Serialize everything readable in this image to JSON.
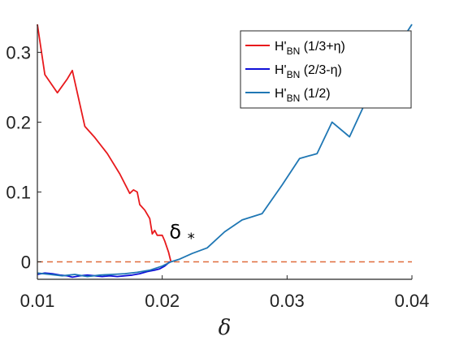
{
  "chart_data": {
    "type": "line",
    "xlabel": "δ",
    "ylabel": "",
    "title": "",
    "xlim": [
      0.01,
      0.04
    ],
    "ylim": [
      -0.025,
      0.34
    ],
    "x_ticks": [
      0.01,
      0.02,
      0.03,
      0.04
    ],
    "x_tick_labels": [
      "0.01",
      "0.02",
      "0.03",
      "0.04"
    ],
    "y_ticks": [
      0,
      0.1,
      0.2,
      0.3
    ],
    "y_tick_labels": [
      "0",
      "0.1",
      "0.2",
      "0.3"
    ],
    "grid": false,
    "legend_position": "top-right",
    "annotation": {
      "text_main": "δ",
      "text_sub": "*",
      "x": 0.0207,
      "y": 0.02
    },
    "reference_line": {
      "y": 0,
      "color": "#e06c3c",
      "style": "dashed"
    },
    "series": [
      {
        "name": "H'BN (1/3+η)",
        "legend_main": "H'",
        "legend_sub": "BN",
        "legend_suffix": " (1/3+η)",
        "color": "#e8191c",
        "x": [
          0.01,
          0.0106,
          0.0116,
          0.0124,
          0.0128,
          0.0138,
          0.0146,
          0.0156,
          0.0166,
          0.0174,
          0.0177,
          0.018,
          0.0182,
          0.0186,
          0.019,
          0.0192,
          0.0194,
          0.0196,
          0.02,
          0.0202,
          0.0205,
          0.0207
        ],
        "y": [
          0.34,
          0.268,
          0.242,
          0.262,
          0.274,
          0.194,
          0.178,
          0.155,
          0.126,
          0.098,
          0.103,
          0.1,
          0.082,
          0.074,
          0.062,
          0.04,
          0.045,
          0.038,
          0.038,
          0.03,
          0.014,
          0.0
        ]
      },
      {
        "name": "H'BN (2/3-η)",
        "legend_main": "H'",
        "legend_sub": "BN",
        "legend_suffix": " (2/3-η)",
        "color": "#1010d8",
        "x": [
          0.01,
          0.0106,
          0.0112,
          0.0118,
          0.0124,
          0.0128,
          0.0134,
          0.014,
          0.0146,
          0.0152,
          0.0158,
          0.0164,
          0.017,
          0.0176,
          0.0182,
          0.0188,
          0.0194,
          0.0198,
          0.0202,
          0.0206
        ],
        "y": [
          -0.018,
          -0.016,
          -0.017,
          -0.019,
          -0.02,
          -0.022,
          -0.02,
          -0.019,
          -0.02,
          -0.021,
          -0.02,
          -0.021,
          -0.02,
          -0.019,
          -0.017,
          -0.014,
          -0.012,
          -0.01,
          -0.006,
          0.0
        ]
      },
      {
        "name": "H'BN (1/2)",
        "legend_main": "H'",
        "legend_sub": "BN",
        "legend_suffix": " (1/2)",
        "color": "#1f77b4",
        "x": [
          0.01,
          0.011,
          0.012,
          0.013,
          0.014,
          0.015,
          0.016,
          0.017,
          0.018,
          0.019,
          0.02,
          0.0207,
          0.0214,
          0.0224,
          0.0236,
          0.025,
          0.0264,
          0.028,
          0.0296,
          0.031,
          0.0324,
          0.0336,
          0.035,
          0.0366,
          0.0382,
          0.04
        ],
        "y": [
          -0.016,
          -0.018,
          -0.02,
          -0.018,
          -0.021,
          -0.019,
          -0.018,
          -0.017,
          -0.015,
          -0.012,
          -0.006,
          0.0,
          0.004,
          0.012,
          0.02,
          0.043,
          0.06,
          0.069,
          0.11,
          0.148,
          0.155,
          0.2,
          0.179,
          0.241,
          0.29,
          0.34
        ]
      }
    ]
  }
}
